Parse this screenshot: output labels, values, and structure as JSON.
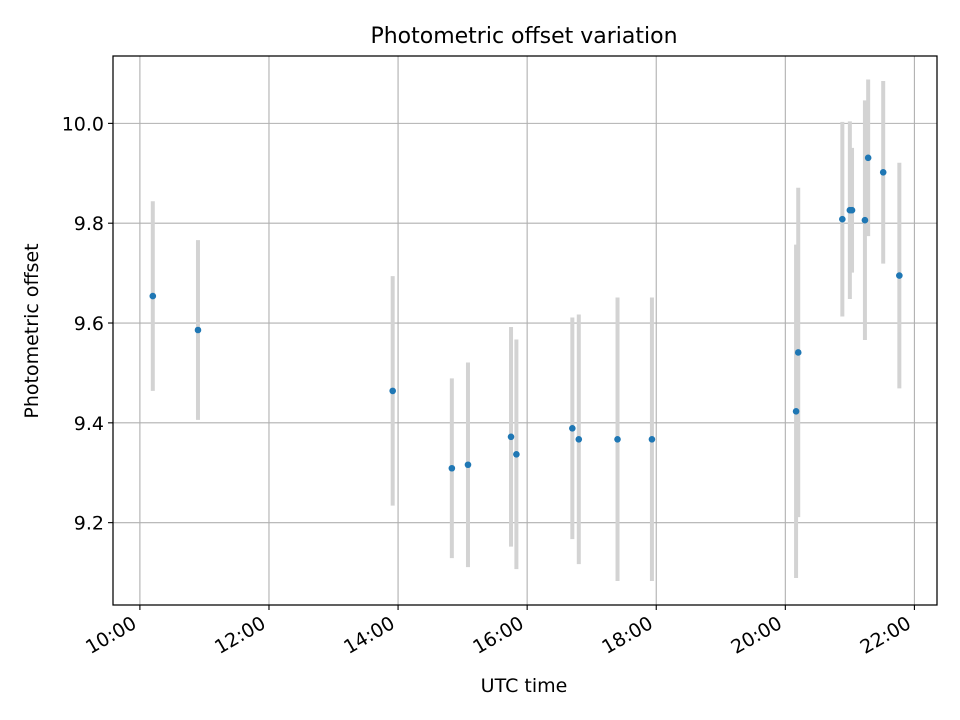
{
  "chart_data": {
    "type": "scatter",
    "title": "Photometric offset variation",
    "xlabel": "UTC time",
    "ylabel": "Photometric offset",
    "xlim": [
      "09:35",
      "22:21"
    ],
    "ylim": [
      9.035,
      10.135
    ],
    "x_ticks": [
      "10:00",
      "12:00",
      "14:00",
      "16:00",
      "18:00",
      "20:00",
      "22:00"
    ],
    "y_ticks": [
      "9.2",
      "9.4",
      "9.6",
      "9.8",
      "10.0"
    ],
    "grid": true,
    "series": [
      {
        "points": [
          {
            "x": "10:12",
            "y": 9.654,
            "err": 0.19
          },
          {
            "x": "10:54",
            "y": 9.586,
            "err": 0.18
          },
          {
            "x": "13:55",
            "y": 9.464,
            "err": 0.23
          },
          {
            "x": "14:50",
            "y": 9.309,
            "err": 0.18
          },
          {
            "x": "15:05",
            "y": 9.316,
            "err": 0.205
          },
          {
            "x": "15:45",
            "y": 9.372,
            "err": 0.22
          },
          {
            "x": "15:50",
            "y": 9.337,
            "err": 0.23
          },
          {
            "x": "16:42",
            "y": 9.389,
            "err": 0.222
          },
          {
            "x": "16:48",
            "y": 9.367,
            "err": 0.25
          },
          {
            "x": "17:24",
            "y": 9.367,
            "err": 0.284
          },
          {
            "x": "17:56",
            "y": 9.367,
            "err": 0.284
          },
          {
            "x": "20:10",
            "y": 9.423,
            "err": 0.334
          },
          {
            "x": "20:12",
            "y": 9.541,
            "err": 0.33
          },
          {
            "x": "20:53",
            "y": 9.808,
            "err": 0.195
          },
          {
            "x": "21:00",
            "y": 9.826,
            "err": 0.178
          },
          {
            "x": "21:02",
            "y": 9.826,
            "err": 0.125
          },
          {
            "x": "21:14",
            "y": 9.806,
            "err": 0.24
          },
          {
            "x": "21:17",
            "y": 9.931,
            "err": 0.157
          },
          {
            "x": "21:31",
            "y": 9.902,
            "err": 0.183
          },
          {
            "x": "21:46",
            "y": 9.695,
            "err": 0.226
          }
        ]
      }
    ],
    "colors": {
      "point": "#1f77b4",
      "errorbar": "#d3d3d3",
      "grid": "#b0b0b0",
      "axes": "#000000"
    }
  }
}
